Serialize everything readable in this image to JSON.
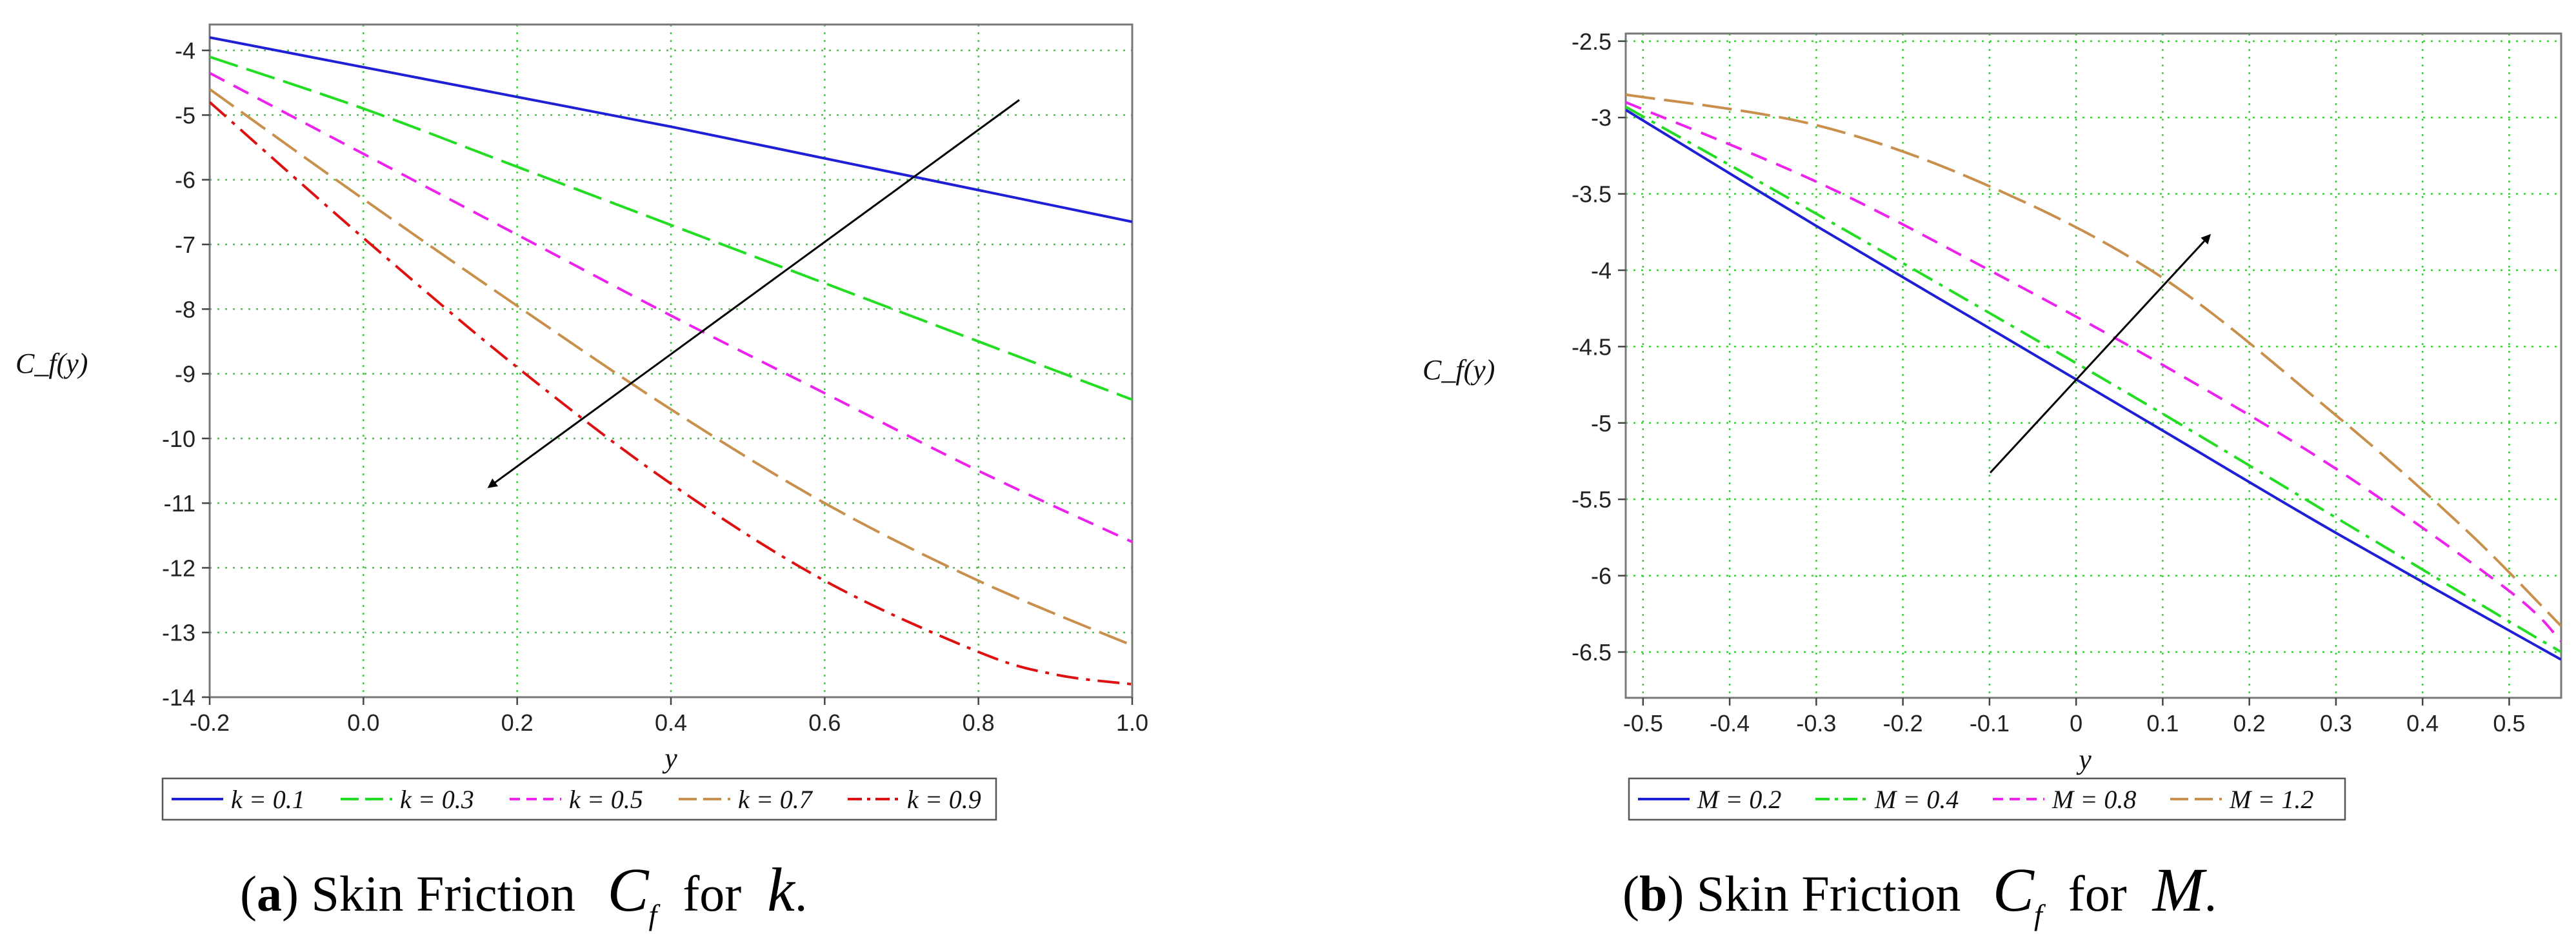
{
  "chart_data": [
    {
      "type": "line",
      "ylabel": "C_f(y)",
      "xlabel": "y",
      "xlim": [
        -0.2,
        1.0
      ],
      "ylim": [
        -14,
        -3.6
      ],
      "xticks": [
        -0.2,
        0.0,
        0.2,
        0.4,
        0.6,
        0.8,
        1.0
      ],
      "xtick_labels": [
        "-0.2",
        "0.0",
        "0.2",
        "0.4",
        "0.6",
        "0.8",
        "1.0"
      ],
      "yticks": [
        -4,
        -5,
        -6,
        -7,
        -8,
        -9,
        -10,
        -11,
        -12,
        -13,
        -14
      ],
      "ytick_labels": [
        "-4",
        "-5",
        "-6",
        "-7",
        "-8",
        "-9",
        "-10",
        "-11",
        "-12",
        "-13",
        "-14"
      ],
      "grid": true,
      "legend_position": "bottom",
      "annotation": "arrow pointing down-left (increasing k)",
      "series": [
        {
          "name": "k = 0.1",
          "color": "#1f1fd6",
          "dash": "solid",
          "x": [
            -0.2,
            0.0,
            0.2,
            0.4,
            0.6,
            0.8,
            1.0
          ],
          "y": [
            -3.8,
            -4.26,
            -4.72,
            -5.18,
            -5.67,
            -6.16,
            -6.65
          ]
        },
        {
          "name": "k = 0.3",
          "color": "#22dd22",
          "dash": "longdash",
          "x": [
            -0.2,
            0.0,
            0.2,
            0.4,
            0.6,
            0.8,
            1.0
          ],
          "y": [
            -4.1,
            -4.9,
            -5.8,
            -6.7,
            -7.6,
            -8.5,
            -9.4
          ]
        },
        {
          "name": "k = 0.5",
          "color": "#ee22ee",
          "dash": "dash",
          "x": [
            -0.2,
            0.0,
            0.2,
            0.4,
            0.6,
            0.8,
            1.0
          ],
          "y": [
            -4.35,
            -5.6,
            -6.85,
            -8.1,
            -9.3,
            -10.5,
            -11.6
          ]
        },
        {
          "name": "k = 0.7",
          "color": "#c8904c",
          "dash": "longdash",
          "x": [
            -0.2,
            0.0,
            0.2,
            0.4,
            0.6,
            0.8,
            1.0
          ],
          "y": [
            -4.6,
            -6.3,
            -7.95,
            -9.55,
            -11.0,
            -12.2,
            -13.2
          ]
        },
        {
          "name": "k = 0.9",
          "color": "#dd1111",
          "dash": "dashdot",
          "x": [
            -0.2,
            0.0,
            0.2,
            0.4,
            0.6,
            0.8,
            0.9,
            1.0
          ],
          "y": [
            -4.8,
            -6.9,
            -8.9,
            -10.7,
            -12.2,
            -13.3,
            -13.65,
            -13.8
          ]
        }
      ]
    },
    {
      "type": "line",
      "ylabel": "C_f(y)",
      "xlabel": "y",
      "xlim": [
        -0.52,
        0.56
      ],
      "ylim": [
        -6.8,
        -2.45
      ],
      "xticks": [
        -0.5,
        -0.4,
        -0.3,
        -0.2,
        -0.1,
        0,
        0.1,
        0.2,
        0.3,
        0.4,
        0.5
      ],
      "xtick_labels": [
        "-0.5",
        "-0.4",
        "-0.3",
        "-0.2",
        "-0.1",
        "0",
        "0.1",
        "0.2",
        "0.3",
        "0.4",
        "0.5"
      ],
      "yticks": [
        -2.5,
        -3,
        -3.5,
        -4,
        -4.5,
        -5,
        -5.5,
        -6,
        -6.5
      ],
      "ytick_labels": [
        "-2.5",
        "-3",
        "-3.5",
        "-4",
        "-4.5",
        "-5",
        "-5.5",
        "-6",
        "-6.5"
      ],
      "grid": true,
      "legend_position": "bottom",
      "annotation": "arrow pointing up-right (increasing M)",
      "series": [
        {
          "name": "M = 0.2",
          "color": "#1f1fd6",
          "dash": "solid",
          "x": [
            -0.52,
            -0.3,
            -0.1,
            0.1,
            0.3,
            0.56
          ],
          "y": [
            -2.95,
            -3.71,
            -4.38,
            -5.05,
            -5.72,
            -6.55
          ]
        },
        {
          "name": "M = 0.4",
          "color": "#22dd22",
          "dash": "dashdot",
          "x": [
            -0.52,
            -0.3,
            -0.1,
            0.1,
            0.3,
            0.5,
            0.56
          ],
          "y": [
            -2.93,
            -3.63,
            -4.28,
            -4.94,
            -5.62,
            -6.3,
            -6.5
          ]
        },
        {
          "name": "M = 0.8",
          "color": "#ee22ee",
          "dash": "dash",
          "x": [
            -0.52,
            -0.3,
            -0.1,
            0.1,
            0.3,
            0.5,
            0.56
          ],
          "y": [
            -2.9,
            -3.42,
            -4.0,
            -4.62,
            -5.3,
            -6.1,
            -6.43
          ]
        },
        {
          "name": "M = 1.2",
          "color": "#c8904c",
          "dash": "longdash",
          "x": [
            -0.52,
            -0.3,
            -0.1,
            0.1,
            0.3,
            0.45,
            0.56
          ],
          "y": [
            -2.85,
            -3.05,
            -3.45,
            -4.05,
            -4.95,
            -5.7,
            -6.33
          ]
        }
      ]
    }
  ],
  "captions": [
    {
      "letter": "a",
      "text": "Skin Friction",
      "symbol": "C",
      "subscript": "f",
      "for_word": "for",
      "param": "k",
      "end": "."
    },
    {
      "letter": "b",
      "text": "Skin Friction",
      "symbol": "C",
      "subscript": "f",
      "for_word": "for",
      "param": "M",
      "end": "."
    }
  ],
  "colors": {
    "grid": "#3ccc3c",
    "frame": "#777777",
    "arrow": "#000000"
  }
}
